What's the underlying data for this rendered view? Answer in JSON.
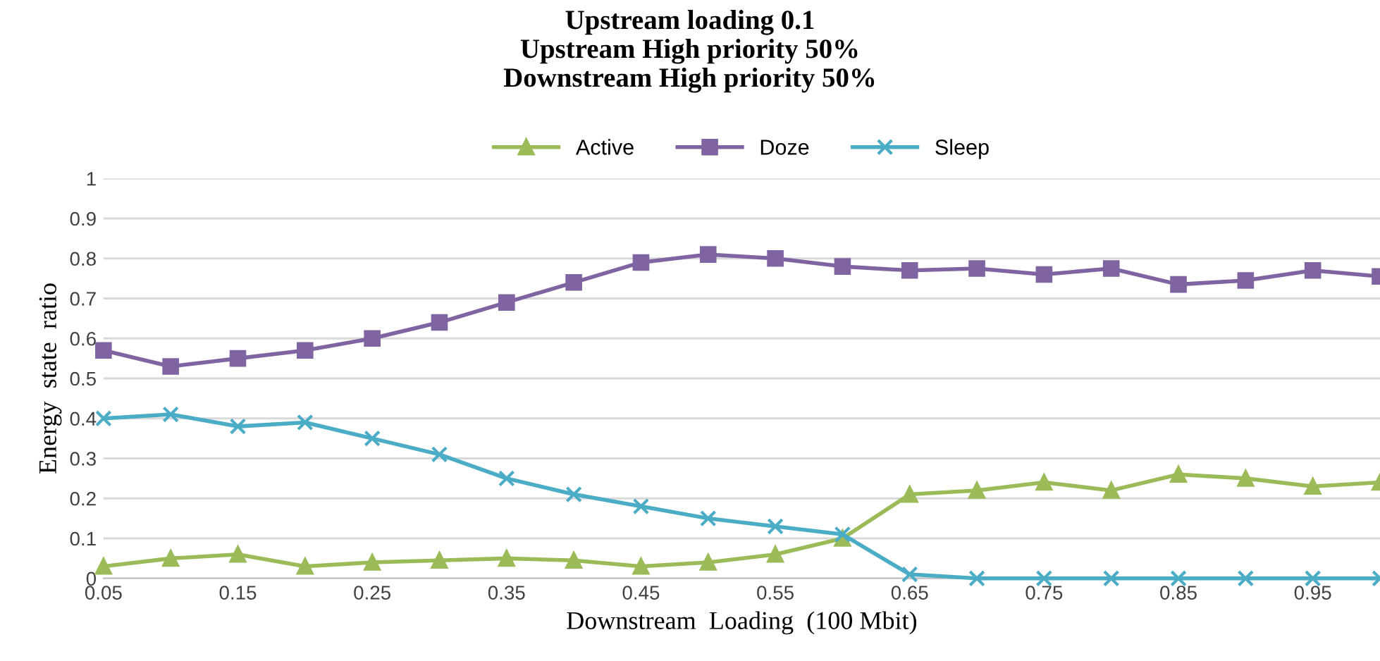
{
  "chart_data": {
    "type": "line",
    "title": "Upstream loading 0.1\nUpstream High priority 50%\nDownstream High priority 50%",
    "xlabel": "Downstream  Loading  (100 Mbit)",
    "ylabel": "Energy  state  ratio",
    "x": [
      0.05,
      0.1,
      0.15,
      0.2,
      0.25,
      0.3,
      0.35,
      0.4,
      0.45,
      0.5,
      0.55,
      0.6,
      0.65,
      0.7,
      0.75,
      0.8,
      0.85,
      0.9,
      0.95,
      1.0
    ],
    "series": [
      {
        "name": "Active",
        "color": "#9bbb59",
        "marker": "triangle",
        "values": [
          0.03,
          0.05,
          0.06,
          0.03,
          0.04,
          0.045,
          0.05,
          0.045,
          0.03,
          0.04,
          0.06,
          0.1,
          0.21,
          0.22,
          0.24,
          0.22,
          0.26,
          0.25,
          0.23,
          0.24
        ]
      },
      {
        "name": "Doze",
        "color": "#8064a2",
        "marker": "square",
        "values": [
          0.57,
          0.53,
          0.55,
          0.57,
          0.6,
          0.64,
          0.69,
          0.74,
          0.79,
          0.81,
          0.8,
          0.78,
          0.77,
          0.775,
          0.76,
          0.775,
          0.735,
          0.745,
          0.77,
          0.755
        ]
      },
      {
        "name": "Sleep",
        "color": "#4bacc6",
        "marker": "cross",
        "values": [
          0.4,
          0.41,
          0.38,
          0.39,
          0.35,
          0.31,
          0.25,
          0.21,
          0.18,
          0.15,
          0.13,
          0.11,
          0.01,
          0,
          0,
          0,
          0,
          0,
          0,
          0
        ]
      }
    ],
    "xlim": [
      0.05,
      1.0
    ],
    "xticks": [
      0.05,
      0.15,
      0.25,
      0.35,
      0.45,
      0.55,
      0.65,
      0.75,
      0.85,
      0.95
    ],
    "ylim": [
      0,
      1
    ],
    "yticks": [
      0,
      0.1,
      0.2,
      0.3,
      0.4,
      0.5,
      0.6,
      0.7,
      0.8,
      0.9,
      1
    ],
    "grid": "y",
    "legend": "top",
    "line_style": "solid"
  }
}
